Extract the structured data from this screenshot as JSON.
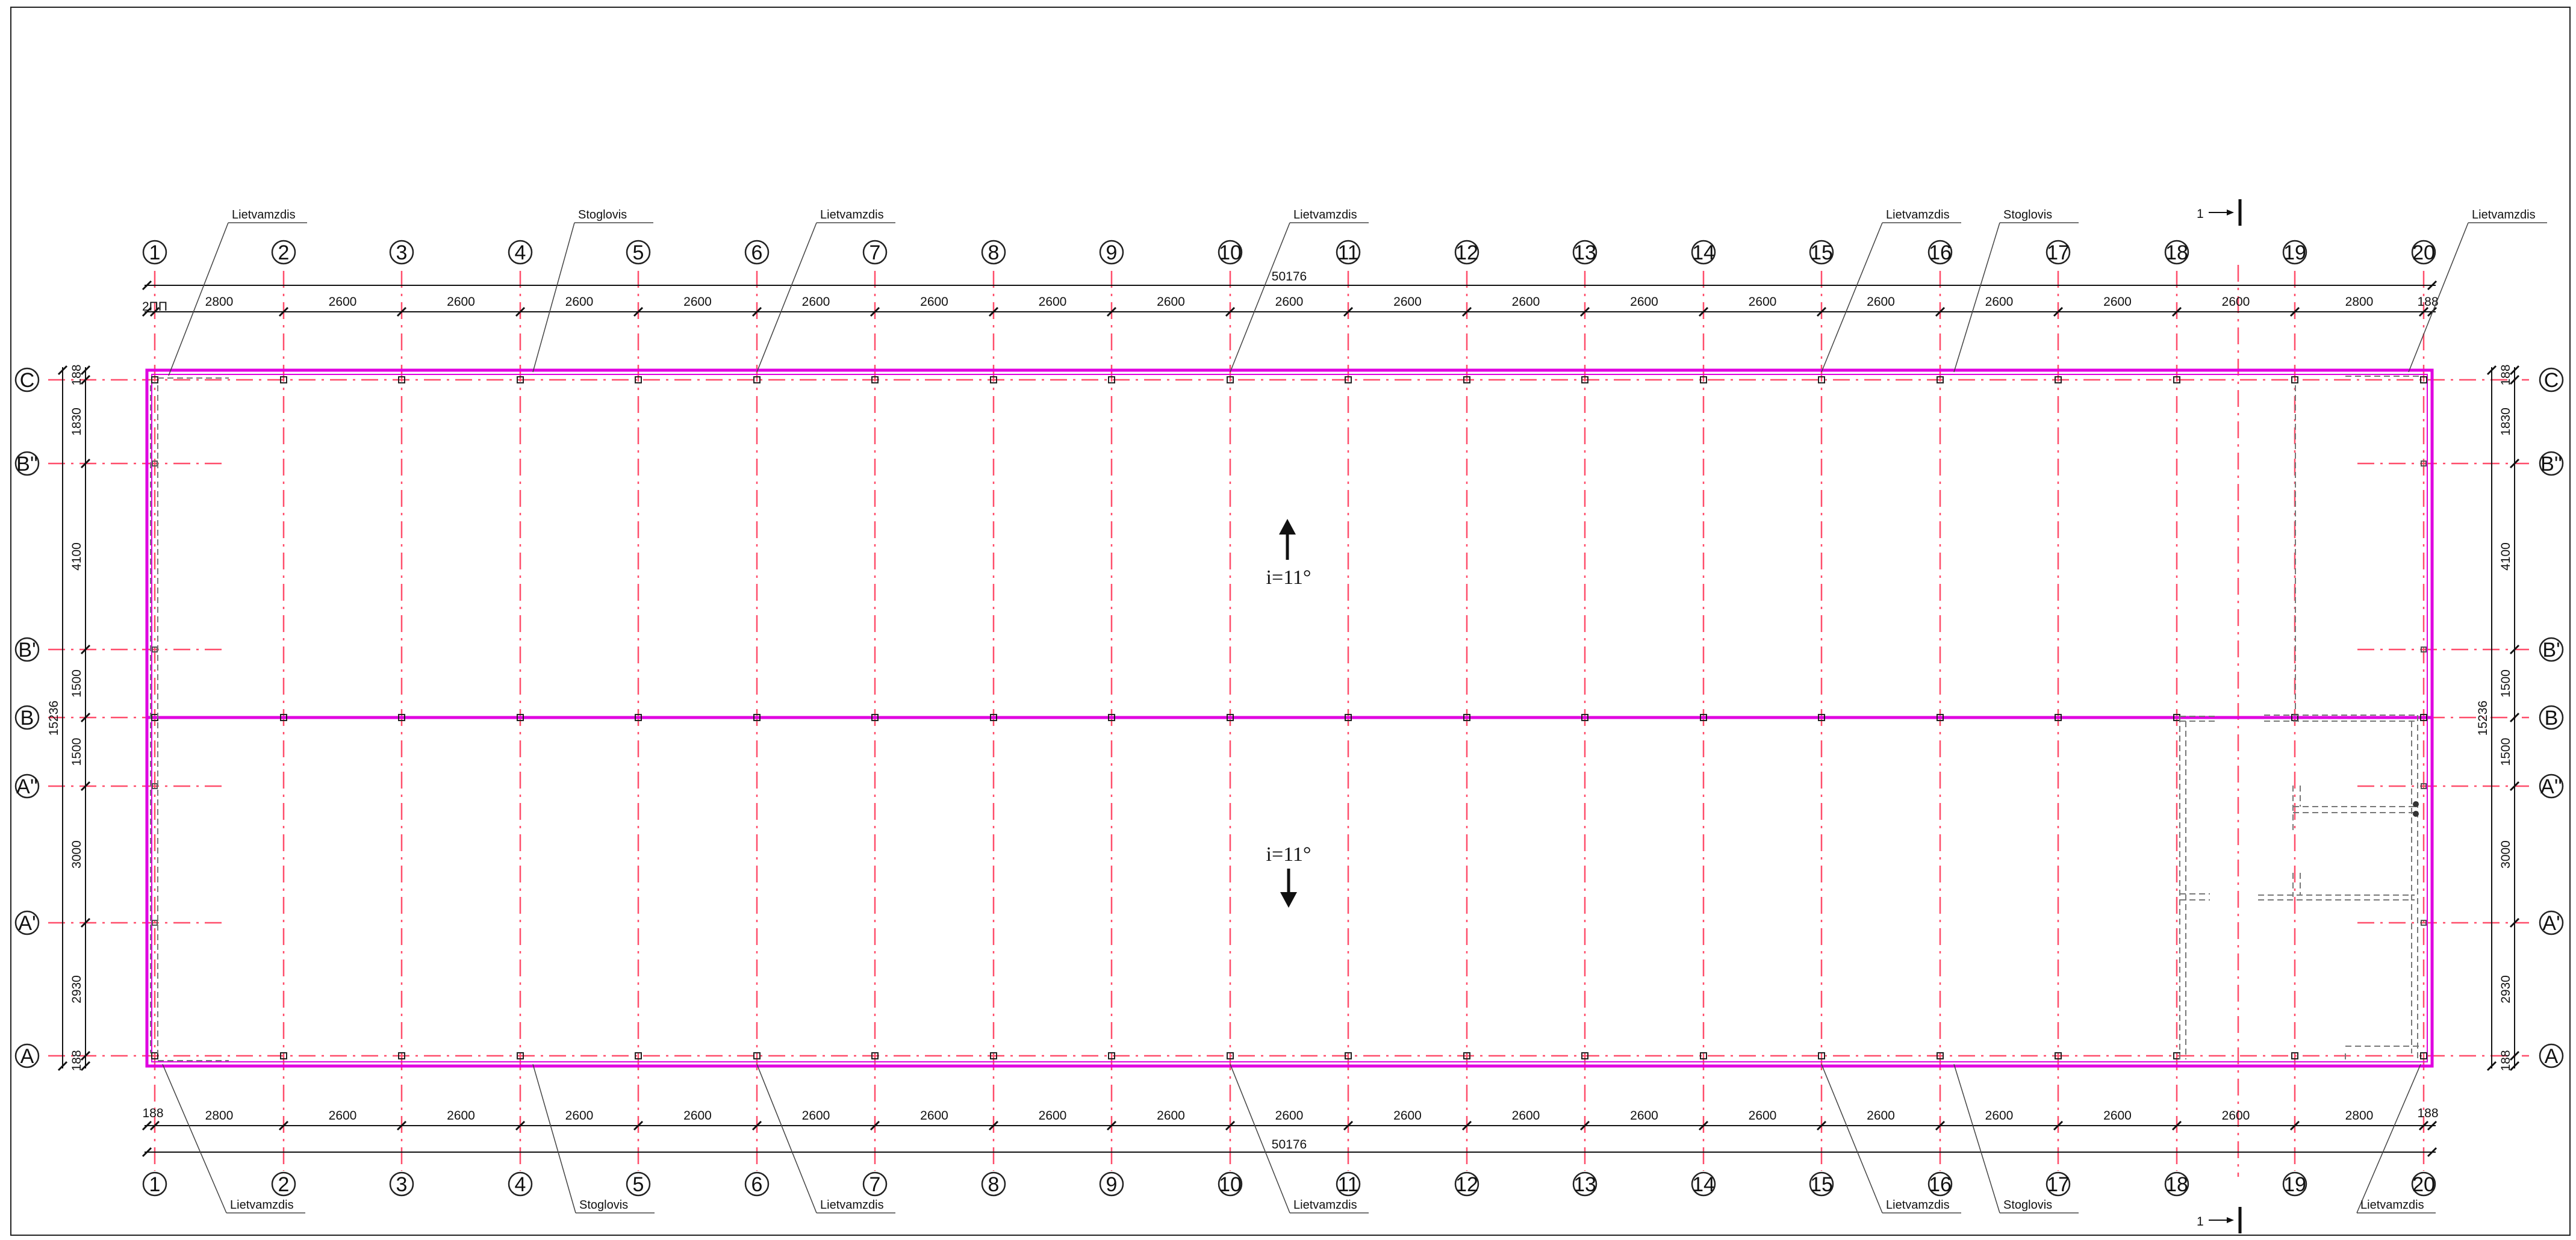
{
  "drawing": {
    "grid_columns": [
      "1",
      "2",
      "3",
      "4",
      "5",
      "6",
      "7",
      "8",
      "9",
      "10",
      "11",
      "12",
      "13",
      "14",
      "15",
      "16",
      "17",
      "18",
      "19",
      "20"
    ],
    "grid_rows": [
      "C",
      "B''",
      "B'",
      "B",
      "A''",
      "A'",
      "A"
    ],
    "top_segments": [
      "2800",
      "2600",
      "2600",
      "2600",
      "2600",
      "2600",
      "2600",
      "2600",
      "2600",
      "2600",
      "2600",
      "2600",
      "2600",
      "2600",
      "2600",
      "2600",
      "2600",
      "2600",
      "2800"
    ],
    "bottom_segments": [
      "2800",
      "2600",
      "2600",
      "2600",
      "2600",
      "2600",
      "2600",
      "2600",
      "2600",
      "2600",
      "2600",
      "2600",
      "2600",
      "2600",
      "2600",
      "2600",
      "2600",
      "2600",
      "2800"
    ],
    "overall_length": "50176",
    "edge_offset": "188",
    "top_left_offset": "2ΠΠ",
    "row_segments": [
      "1830",
      "4100",
      "1500",
      "1500",
      "3000",
      "2930"
    ],
    "overall_width": "15236",
    "slope_top": "i=11°",
    "slope_bottom": "i=11°",
    "section_mark": "1",
    "labels_top": [
      "Lietvamzdis",
      "Stoglovis",
      "Lietvamzdis",
      "Lietvamzdis",
      "Lietvamzdis",
      "Stoglovis",
      "Lietvamzdis"
    ],
    "labels_bottom": [
      "Lietvamzdis",
      "Stoglovis",
      "Lietvamzdis",
      "Lietvamzdis",
      "Lietvamzdis",
      "Stoglovis",
      "Lietvamzdis"
    ]
  },
  "colors": {
    "outline": "#e000e0",
    "axis": "#ff4d6a",
    "dim": "#111111",
    "hidden": "#777777"
  }
}
